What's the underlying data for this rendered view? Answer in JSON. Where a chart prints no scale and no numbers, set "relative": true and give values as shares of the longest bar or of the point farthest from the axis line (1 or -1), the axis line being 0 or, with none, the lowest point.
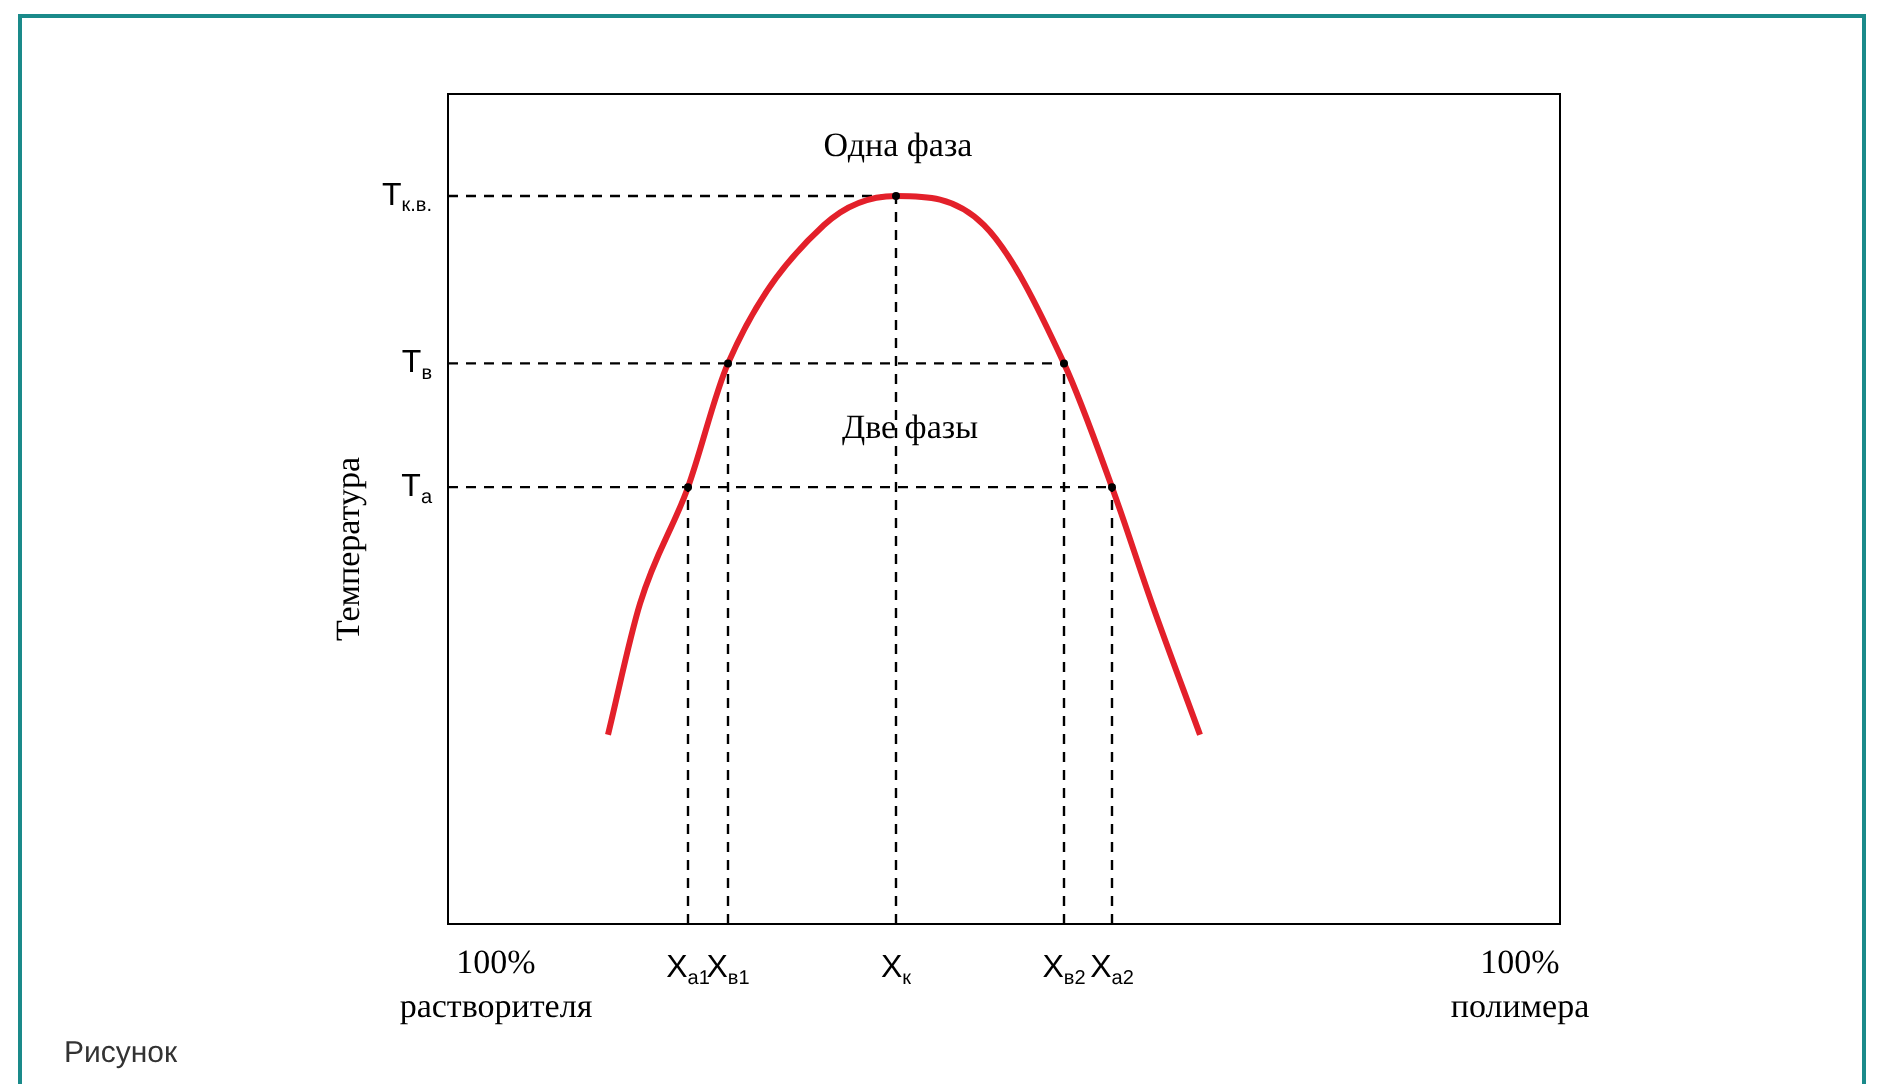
{
  "chart_data": {
    "type": "line",
    "relative": true,
    "ylabel": "Температура",
    "line_style": "solid",
    "grid": false,
    "legend": false,
    "categories": [
      null,
      null,
      null,
      null,
      null,
      null,
      "100%\nрастворителя",
      null,
      null,
      null,
      null,
      null,
      null,
      null,
      null,
      null,
      null,
      null,
      null,
      null,
      null,
      null,
      null,
      null,
      null,
      null,
      null,
      null,
      null,
      null,
      "X$_{a1}$",
      null,
      null,
      null,
      null,
      "X$_{в1}$",
      null,
      null,
      null,
      null,
      null,
      null,
      null,
      null,
      null,
      null,
      null,
      null,
      null,
      null,
      null,
      null,
      null,
      null,
      null,
      null,
      "X$_{к}$",
      null,
      null,
      null,
      null,
      null,
      null,
      null,
      null,
      null,
      null,
      null,
      null,
      null,
      null,
      null,
      null,
      null,
      null,
      null,
      null,
      "X$_{в2}$",
      null,
      null,
      null,
      null,
      null,
      "X$_{a2}$",
      null,
      null,
      null,
      null,
      null,
      null,
      null,
      null,
      null,
      null,
      null,
      null,
      null,
      null,
      null,
      null,
      null,
      null,
      null,
      null,
      null,
      null,
      null,
      null,
      null,
      null,
      null,
      null,
      null,
      null,
      null,
      null,
      null,
      null,
      null,
      null,
      null,
      null,
      null,
      null,
      null,
      null,
      null,
      null,
      null,
      null,
      null,
      null,
      null,
      null,
      "100%\nполимера",
      null,
      null,
      null,
      null,
      null
    ],
    "annotations": [
      "Одна фаза",
      "Две фазы",
      "Рисунок"
    ],
    "series": [
      {
        "color": "#e3202a",
        "values": [
          null,
          null,
          null,
          null,
          null,
          null,
          null,
          null,
          null,
          null,
          null,
          null,
          null,
          null,
          null,
          null,
          null,
          null,
          null,
          null,
          0.26,
          null,
          null,
          null,
          0.44,
          null,
          null,
          null,
          null,
          null,
          0.6,
          null,
          null,
          null,
          null,
          0.77,
          null,
          null,
          null,
          null,
          null,
          null,
          null,
          null,
          null,
          null,
          null,
          0.96,
          null,
          null,
          null,
          null,
          null,
          null,
          null,
          null,
          1,
          null,
          null,
          null,
          null,
          null,
          null,
          null,
          null,
          null,
          null,
          0.96,
          null,
          null,
          null,
          null,
          null,
          null,
          null,
          null,
          null,
          0.77,
          null,
          null,
          null,
          null,
          null,
          0.6,
          null,
          null,
          null,
          null,
          0.44,
          null,
          null,
          null,
          null,
          null,
          0.26,
          null,
          null,
          null,
          null,
          null,
          null,
          null,
          null,
          null,
          null,
          null,
          null,
          null,
          null,
          null,
          null,
          null,
          null,
          null,
          null,
          null,
          null,
          null,
          null,
          null,
          null,
          null,
          null,
          null,
          null,
          null,
          null,
          null,
          null,
          null,
          null,
          null,
          null,
          null,
          null,
          null,
          null,
          null,
          null,
          null
        ]
      },
      {
        "type": "line",
        "name": "T$_{к.в.}$",
        "line_style": "dashed",
        "color": "#000000",
        "values": [
          1,
          null,
          null,
          null,
          null,
          null,
          null,
          null,
          null,
          null,
          null,
          null,
          null,
          null,
          null,
          null,
          null,
          null,
          null,
          null,
          null,
          null,
          null,
          null,
          null,
          null,
          null,
          null,
          null,
          null,
          null,
          null,
          null,
          null,
          null,
          null,
          null,
          null,
          null,
          null,
          null,
          null,
          null,
          null,
          null,
          null,
          null,
          null,
          null,
          null,
          null,
          null,
          null,
          null,
          null,
          null,
          1,
          null,
          null,
          null,
          null,
          null,
          null,
          null,
          null,
          null,
          null,
          null,
          null,
          null,
          null,
          null,
          null,
          null,
          null,
          null,
          null,
          null,
          null,
          null,
          null,
          null,
          null,
          null,
          null,
          null,
          null,
          null,
          null,
          null,
          null,
          null,
          null,
          null,
          null,
          null,
          null,
          null,
          null,
          null,
          null,
          null,
          null,
          null,
          null,
          null,
          null,
          null,
          null,
          null,
          null,
          null,
          null,
          null,
          null,
          null,
          null,
          null,
          null,
          null,
          null,
          null,
          null,
          null,
          null,
          null,
          null,
          null,
          null,
          null,
          null,
          null,
          null,
          null,
          null,
          null,
          null,
          null,
          null,
          null
        ]
      },
      {
        "type": "line",
        "name": "T$_{в}$",
        "line_style": "dashed",
        "color": "#000000",
        "values": [
          0.77,
          null,
          null,
          null,
          null,
          null,
          null,
          null,
          null,
          null,
          null,
          null,
          null,
          null,
          null,
          null,
          null,
          null,
          null,
          null,
          null,
          null,
          null,
          null,
          null,
          null,
          null,
          null,
          null,
          null,
          null,
          null,
          null,
          null,
          null,
          null,
          null,
          null,
          null,
          null,
          null,
          null,
          null,
          null,
          null,
          null,
          null,
          null,
          null,
          null,
          null,
          null,
          null,
          null,
          null,
          null,
          null,
          null,
          null,
          null,
          null,
          null,
          null,
          null,
          null,
          null,
          null,
          null,
          null,
          null,
          null,
          null,
          null,
          null,
          null,
          null,
          null,
          0.77,
          null,
          null,
          null,
          null,
          null,
          null,
          null,
          null,
          null,
          null,
          null,
          null,
          null,
          null,
          null,
          null,
          null,
          null,
          null,
          null,
          null,
          null,
          null,
          null,
          null,
          null,
          null,
          null,
          null,
          null,
          null,
          null,
          null,
          null,
          null,
          null,
          null,
          null,
          null,
          null,
          null,
          null,
          null,
          null,
          null,
          null,
          null,
          null,
          null,
          null,
          null,
          null,
          null,
          null,
          null,
          null,
          null,
          null,
          null,
          null,
          null,
          null
        ]
      },
      {
        "type": "line",
        "name": "T$_{а}$",
        "line_style": "dashed",
        "color": "#000000",
        "values": [
          0.6,
          null,
          null,
          null,
          null,
          null,
          null,
          null,
          null,
          null,
          null,
          null,
          null,
          null,
          null,
          null,
          null,
          null,
          null,
          null,
          null,
          null,
          null,
          null,
          null,
          null,
          null,
          null,
          null,
          null,
          null,
          null,
          null,
          null,
          null,
          null,
          null,
          null,
          null,
          null,
          null,
          null,
          null,
          null,
          null,
          null,
          null,
          null,
          null,
          null,
          null,
          null,
          null,
          null,
          null,
          null,
          null,
          null,
          null,
          null,
          null,
          null,
          null,
          null,
          null,
          null,
          null,
          null,
          null,
          null,
          null,
          null,
          null,
          null,
          null,
          null,
          null,
          null,
          null,
          null,
          null,
          null,
          null,
          0.6,
          null,
          null,
          null,
          null,
          null,
          null,
          null,
          null,
          null,
          null,
          null,
          null,
          null,
          null,
          null,
          null,
          null,
          null,
          null,
          null,
          null,
          null,
          null,
          null,
          null,
          null,
          null,
          null,
          null,
          null,
          null,
          null,
          null,
          null,
          null,
          null,
          null,
          null,
          null,
          null,
          null,
          null,
          null,
          null,
          null,
          null,
          null,
          null,
          null,
          null,
          null,
          null,
          null,
          null,
          null,
          null
        ]
      },
      {
        "type": "lollipop",
        "line_style": "dashed",
        "color": "#000000",
        "values": [
          null,
          null,
          null,
          null,
          null,
          null,
          null,
          null,
          null,
          null,
          null,
          null,
          null,
          null,
          null,
          null,
          null,
          null,
          null,
          null,
          null,
          null,
          null,
          null,
          null,
          null,
          null,
          null,
          null,
          null,
          0.6,
          null,
          null,
          null,
          null,
          0.77,
          null,
          null,
          null,
          null,
          null,
          null,
          null,
          null,
          null,
          null,
          null,
          null,
          null,
          null,
          null,
          null,
          null,
          null,
          null,
          null,
          1,
          null,
          null,
          null,
          null,
          null,
          null,
          null,
          null,
          null,
          null,
          null,
          null,
          null,
          null,
          null,
          null,
          null,
          null,
          null,
          null,
          0.77,
          null,
          null,
          null,
          null,
          null,
          0.6,
          null,
          null,
          null,
          null,
          null,
          null,
          null,
          null,
          null,
          null,
          null,
          null,
          null,
          null,
          null,
          null,
          null,
          null,
          null,
          null,
          null,
          null,
          null,
          null,
          null,
          null,
          null,
          null,
          null,
          null,
          null,
          null,
          null,
          null,
          null,
          null,
          null,
          null,
          null,
          null,
          null,
          null,
          null,
          null,
          null,
          null,
          null,
          null,
          null,
          null,
          null,
          null,
          null,
          null,
          null,
          null
        ]
      }
    ]
  }
}
